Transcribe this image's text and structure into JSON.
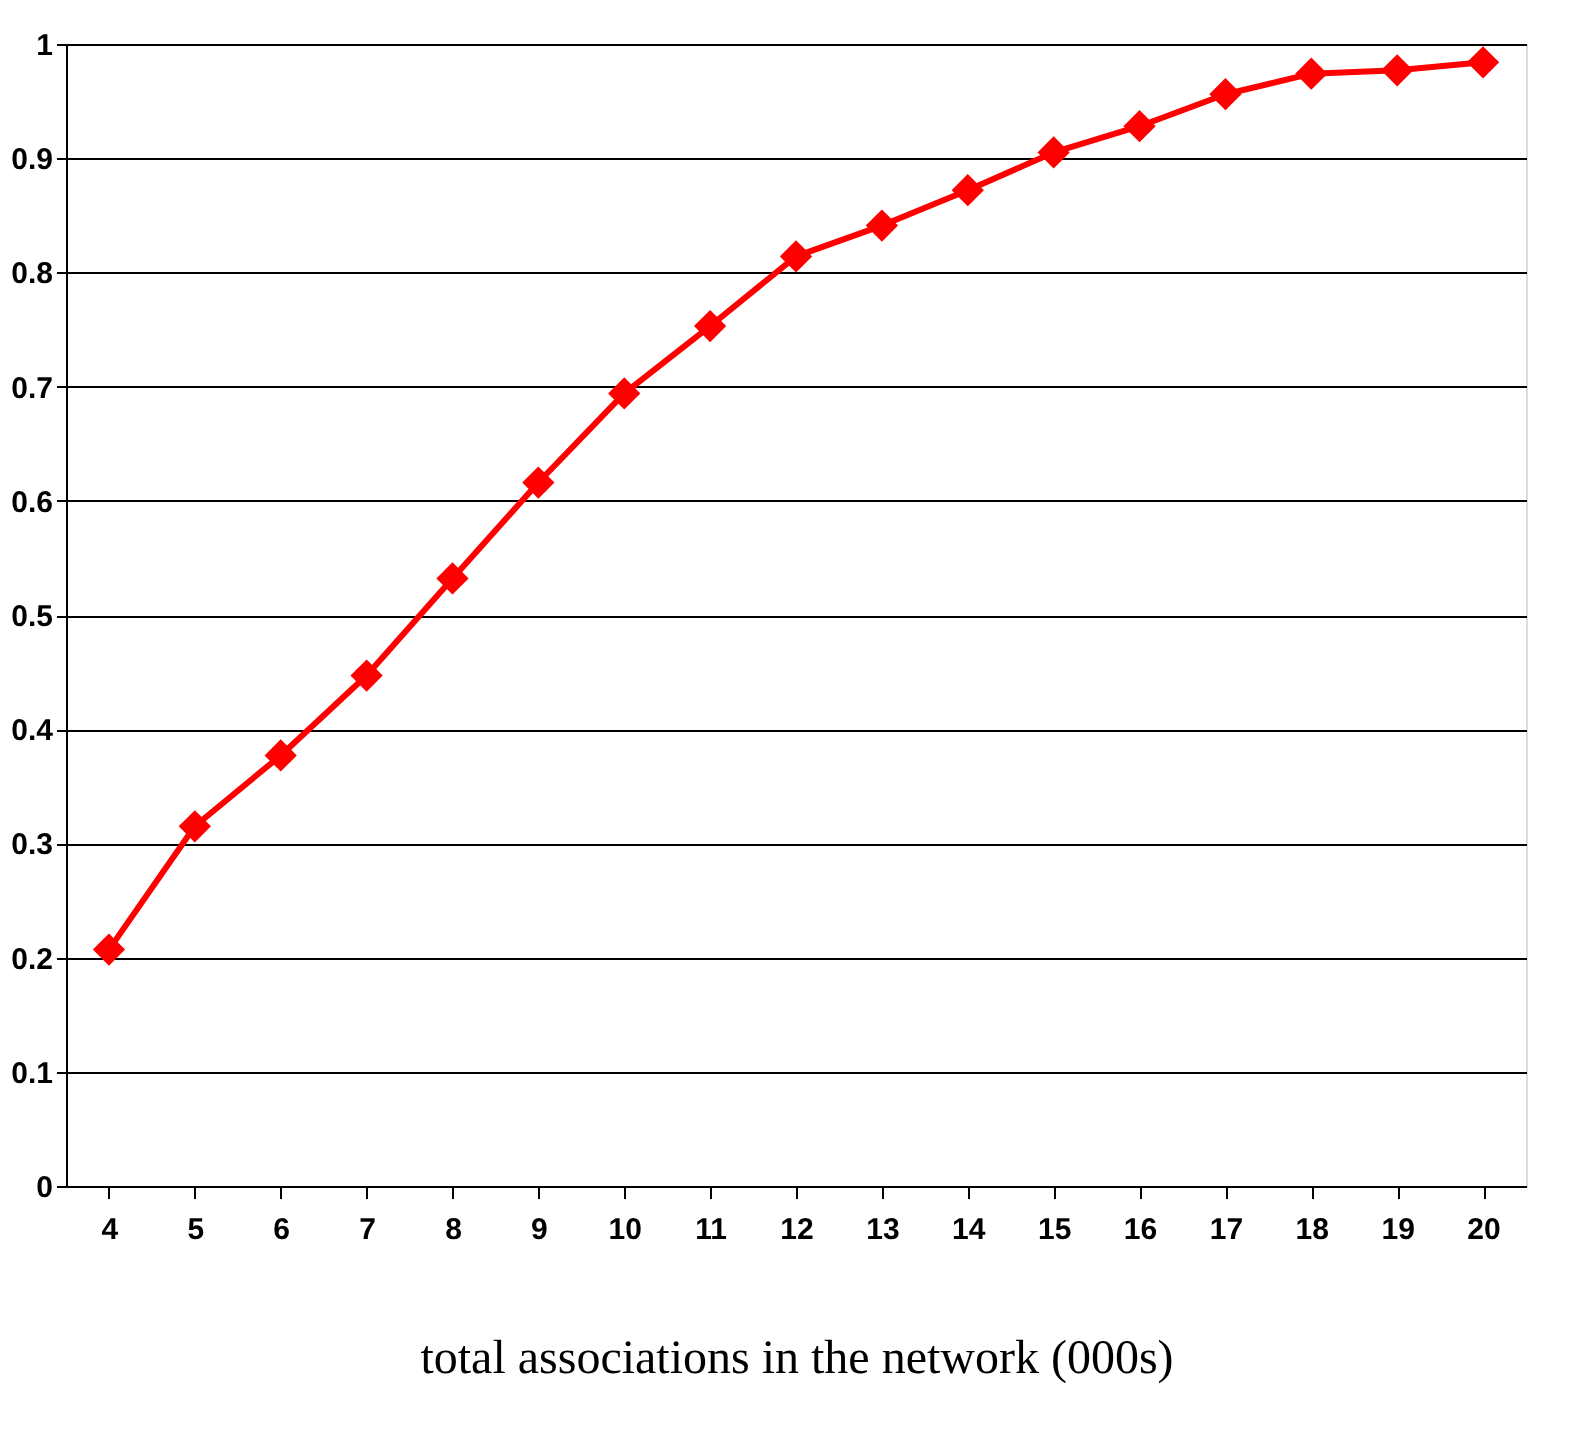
{
  "chart_data": {
    "type": "line",
    "xlabel": "total associations in the network (000s)",
    "categories": [
      "4",
      "5",
      "6",
      "7",
      "8",
      "9",
      "10",
      "11",
      "12",
      "13",
      "14",
      "15",
      "16",
      "17",
      "18",
      "19",
      "20"
    ],
    "series": [
      {
        "color": "#ff0000",
        "values": [
          0.207,
          0.315,
          0.377,
          0.447,
          0.532,
          0.616,
          0.694,
          0.753,
          0.814,
          0.841,
          0.872,
          0.905,
          0.928,
          0.956,
          0.974,
          0.977,
          0.984
        ]
      }
    ],
    "ylim": [
      0,
      1
    ],
    "yticks": [
      0,
      0.1,
      0.2,
      0.3,
      0.4,
      0.5,
      0.6,
      0.7,
      0.8,
      0.9,
      1
    ],
    "grid": "y",
    "marker": "diamond",
    "line_style": "solid"
  }
}
